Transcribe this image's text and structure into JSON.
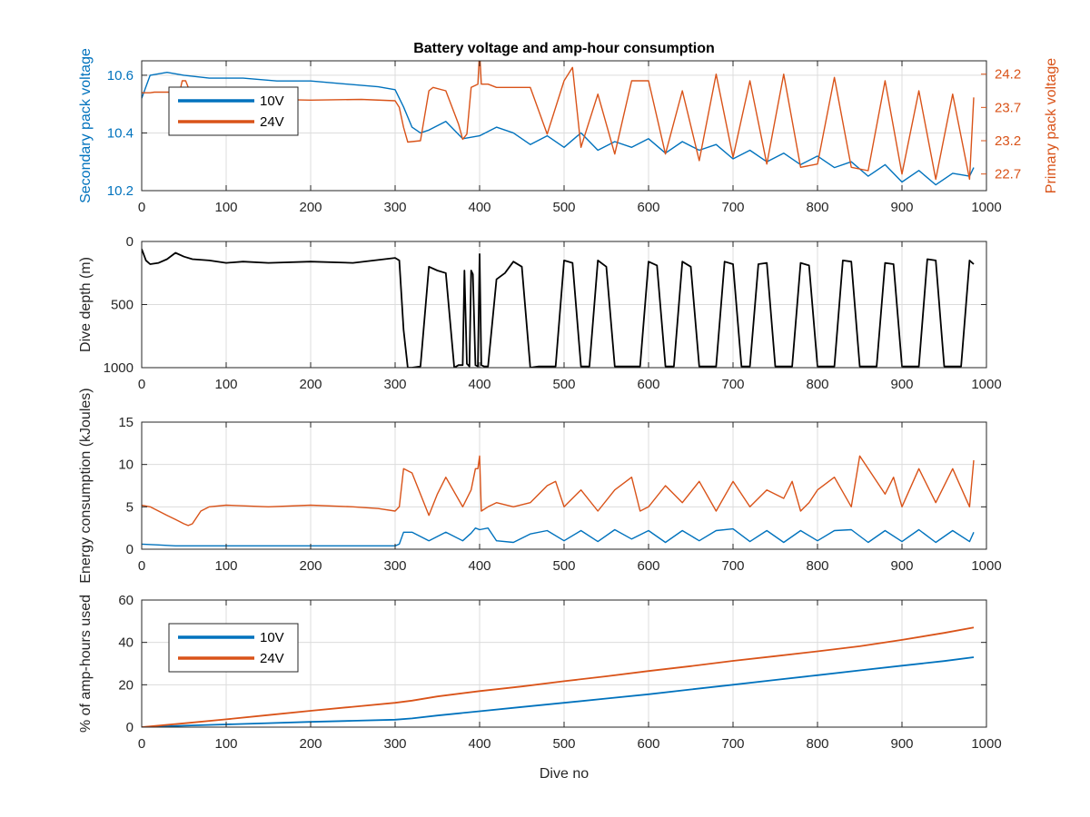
{
  "figure": {
    "title": "Battery voltage and amp-hour consumption",
    "xlabel": "Dive no",
    "colors": {
      "c10V": "#0072BD",
      "c24V": "#D95319",
      "depth": "#000000",
      "grid": "#DCDCDC",
      "axis": "#262626"
    }
  },
  "chart_data": [
    {
      "type": "line",
      "panel": "voltage",
      "title": "Battery voltage and amp-hour consumption",
      "xlim": [
        0,
        1000
      ],
      "xticks": [
        "0",
        "100",
        "200",
        "300",
        "400",
        "500",
        "600",
        "700",
        "800",
        "900",
        "1000"
      ],
      "ylabel_left": "Secondary pack voltage",
      "ylim_left": [
        10.2,
        10.65
      ],
      "yticks_left": [
        "10.2",
        "10.4",
        "10.6"
      ],
      "ylabel_right": "Primary pack voltage",
      "ylim_right": [
        22.45,
        24.4
      ],
      "yticks_right": [
        "22.7",
        "23.2",
        "23.7",
        "24.2"
      ],
      "legend": [
        "10V",
        "24V"
      ],
      "legend_location": "top-left",
      "grid": true,
      "series": [
        {
          "name": "10V",
          "axis": "left",
          "x": [
            0,
            10,
            30,
            50,
            80,
            120,
            160,
            200,
            240,
            280,
            300,
            310,
            320,
            330,
            340,
            360,
            380,
            400,
            420,
            440,
            460,
            480,
            500,
            520,
            540,
            560,
            580,
            600,
            620,
            640,
            660,
            680,
            700,
            720,
            740,
            760,
            780,
            800,
            820,
            840,
            860,
            880,
            900,
            920,
            940,
            960,
            980,
            985
          ],
          "y": [
            10.52,
            10.6,
            10.61,
            10.6,
            10.59,
            10.59,
            10.58,
            10.58,
            10.57,
            10.56,
            10.55,
            10.49,
            10.42,
            10.4,
            10.41,
            10.44,
            10.38,
            10.39,
            10.42,
            10.4,
            10.36,
            10.39,
            10.35,
            10.4,
            10.34,
            10.37,
            10.35,
            10.38,
            10.33,
            10.37,
            10.34,
            10.36,
            10.31,
            10.34,
            10.3,
            10.33,
            10.29,
            10.32,
            10.28,
            10.3,
            10.25,
            10.29,
            10.23,
            10.27,
            10.22,
            10.26,
            10.25,
            10.28
          ]
        },
        {
          "name": "24V",
          "axis": "right",
          "x": [
            0,
            10,
            15,
            30,
            45,
            48,
            52,
            57,
            60,
            80,
            120,
            200,
            260,
            300,
            305,
            310,
            315,
            330,
            340,
            345,
            360,
            375,
            380,
            385,
            390,
            398,
            400,
            402,
            410,
            420,
            440,
            460,
            480,
            500,
            510,
            520,
            540,
            560,
            580,
            600,
            620,
            640,
            660,
            680,
            700,
            720,
            740,
            760,
            780,
            800,
            820,
            840,
            860,
            880,
            900,
            920,
            940,
            960,
            980,
            985
          ],
          "y": [
            23.92,
            23.92,
            23.93,
            23.93,
            23.93,
            24.1,
            24.1,
            23.94,
            23.93,
            23.85,
            23.83,
            23.81,
            23.82,
            23.8,
            23.7,
            23.4,
            23.18,
            23.2,
            23.95,
            24.0,
            23.95,
            23.45,
            23.22,
            23.3,
            24.0,
            24.05,
            24.55,
            24.05,
            24.05,
            24.0,
            24.0,
            24.0,
            23.3,
            24.1,
            24.3,
            23.1,
            23.9,
            23.0,
            24.1,
            24.1,
            23.0,
            23.95,
            22.9,
            24.2,
            22.95,
            24.1,
            22.85,
            24.2,
            22.8,
            22.85,
            24.15,
            22.8,
            22.75,
            24.1,
            22.7,
            23.95,
            22.62,
            23.9,
            22.62,
            23.85
          ]
        }
      ]
    },
    {
      "type": "line",
      "panel": "depth",
      "xlim": [
        0,
        1000
      ],
      "xticks": [
        "0",
        "100",
        "200",
        "300",
        "400",
        "500",
        "600",
        "700",
        "800",
        "900",
        "1000"
      ],
      "ylabel": "Dive depth (m)",
      "ylim": [
        0,
        1000
      ],
      "y_reversed": true,
      "yticks": [
        "0",
        "500",
        "1000"
      ],
      "grid": true,
      "series": [
        {
          "name": "depth",
          "x": [
            0,
            5,
            10,
            20,
            30,
            40,
            50,
            60,
            80,
            100,
            120,
            150,
            200,
            250,
            300,
            305,
            310,
            315,
            320,
            330,
            340,
            350,
            360,
            370,
            375,
            380,
            382,
            385,
            388,
            390,
            392,
            395,
            398,
            400,
            402,
            405,
            410,
            420,
            430,
            440,
            450,
            460,
            470,
            480,
            490,
            500,
            510,
            520,
            530,
            540,
            550,
            560,
            570,
            580,
            590,
            600,
            610,
            620,
            630,
            640,
            650,
            660,
            670,
            680,
            690,
            700,
            710,
            720,
            730,
            740,
            750,
            760,
            770,
            780,
            790,
            800,
            810,
            820,
            830,
            840,
            850,
            860,
            870,
            880,
            890,
            900,
            910,
            920,
            930,
            940,
            950,
            960,
            970,
            980,
            985
          ],
          "y": [
            60,
            150,
            180,
            170,
            140,
            90,
            120,
            140,
            150,
            170,
            160,
            170,
            160,
            170,
            130,
            150,
            700,
            1000,
            1000,
            990,
            200,
            230,
            250,
            1000,
            980,
            980,
            230,
            970,
            990,
            230,
            260,
            980,
            990,
            100,
            980,
            990,
            990,
            300,
            250,
            160,
            200,
            1000,
            990,
            990,
            990,
            150,
            170,
            990,
            990,
            150,
            200,
            990,
            990,
            990,
            990,
            160,
            190,
            990,
            990,
            160,
            200,
            990,
            990,
            990,
            160,
            180,
            990,
            990,
            180,
            170,
            990,
            990,
            990,
            170,
            190,
            990,
            990,
            990,
            150,
            160,
            990,
            990,
            990,
            170,
            180,
            990,
            990,
            990,
            140,
            150,
            990,
            990,
            990,
            150,
            180
          ]
        }
      ]
    },
    {
      "type": "line",
      "panel": "energy",
      "xlim": [
        0,
        1000
      ],
      "xticks": [
        "0",
        "100",
        "200",
        "300",
        "400",
        "500",
        "600",
        "700",
        "800",
        "900",
        "1000"
      ],
      "ylabel": "Energy consumption (kJoules)",
      "ylim": [
        0,
        15
      ],
      "yticks": [
        "0",
        "5",
        "10",
        "15"
      ],
      "grid": true,
      "series": [
        {
          "name": "10V",
          "x": [
            0,
            20,
            40,
            80,
            120,
            160,
            200,
            240,
            280,
            300,
            305,
            310,
            320,
            340,
            350,
            360,
            380,
            390,
            395,
            400,
            410,
            420,
            440,
            460,
            480,
            500,
            520,
            540,
            560,
            580,
            600,
            620,
            640,
            660,
            680,
            700,
            720,
            740,
            760,
            780,
            800,
            820,
            840,
            860,
            880,
            900,
            920,
            940,
            960,
            980,
            985
          ],
          "y": [
            0.6,
            0.5,
            0.4,
            0.4,
            0.4,
            0.4,
            0.4,
            0.4,
            0.4,
            0.4,
            0.6,
            2.0,
            2.0,
            1.0,
            1.5,
            2.0,
            1.0,
            1.9,
            2.5,
            2.3,
            2.5,
            1.0,
            0.8,
            1.8,
            2.2,
            1.0,
            2.2,
            0.9,
            2.3,
            1.2,
            2.2,
            0.8,
            2.2,
            1.0,
            2.2,
            2.4,
            0.9,
            2.2,
            0.8,
            2.2,
            1.0,
            2.2,
            2.3,
            0.8,
            2.2,
            0.9,
            2.3,
            0.8,
            2.2,
            0.9,
            2.0
          ]
        },
        {
          "name": "24V",
          "x": [
            0,
            10,
            20,
            30,
            40,
            50,
            55,
            60,
            70,
            80,
            100,
            150,
            200,
            250,
            280,
            300,
            305,
            310,
            320,
            340,
            350,
            360,
            380,
            390,
            395,
            398,
            400,
            402,
            410,
            420,
            440,
            460,
            480,
            490,
            500,
            520,
            540,
            560,
            580,
            590,
            600,
            620,
            640,
            660,
            680,
            700,
            720,
            740,
            760,
            770,
            780,
            790,
            800,
            820,
            840,
            850,
            860,
            880,
            890,
            900,
            920,
            940,
            960,
            980,
            985
          ],
          "y": [
            5.2,
            5.0,
            4.5,
            4.0,
            3.5,
            3.0,
            2.8,
            3.0,
            4.5,
            5.0,
            5.2,
            5.0,
            5.2,
            5.0,
            4.8,
            4.5,
            5.0,
            9.5,
            9.0,
            4.0,
            6.5,
            8.5,
            5.0,
            7.0,
            9.5,
            9.5,
            11.0,
            4.5,
            5.0,
            5.5,
            5.0,
            5.5,
            7.5,
            8.0,
            5.0,
            7.0,
            4.5,
            7.0,
            8.5,
            4.5,
            5.0,
            7.5,
            5.5,
            8.0,
            4.5,
            8.0,
            5.0,
            7.0,
            6.0,
            8.0,
            4.5,
            5.5,
            7.0,
            8.5,
            5.0,
            11.0,
            9.5,
            6.5,
            8.5,
            5.0,
            9.5,
            5.5,
            9.5,
            5.0,
            10.5
          ]
        }
      ]
    },
    {
      "type": "line",
      "panel": "amphours",
      "xlim": [
        0,
        1000
      ],
      "xticks": [
        "0",
        "100",
        "200",
        "300",
        "400",
        "500",
        "600",
        "700",
        "800",
        "900",
        "1000"
      ],
      "xlabel": "Dive no",
      "ylabel": "% of amp-hours used",
      "ylim": [
        0,
        60
      ],
      "yticks": [
        "0",
        "20",
        "40",
        "60"
      ],
      "legend": [
        "10V",
        "24V"
      ],
      "legend_location": "top-left",
      "grid": true,
      "series": [
        {
          "name": "10V",
          "x": [
            0,
            50,
            100,
            150,
            200,
            250,
            300,
            320,
            350,
            400,
            450,
            500,
            550,
            600,
            650,
            700,
            750,
            800,
            850,
            900,
            950,
            985
          ],
          "y": [
            0,
            0.7,
            1.3,
            1.9,
            2.5,
            3.0,
            3.5,
            4.1,
            5.5,
            7.5,
            9.5,
            11.5,
            13.5,
            15.5,
            17.8,
            20.0,
            22.3,
            24.5,
            26.8,
            29.0,
            31.2,
            33.0
          ]
        },
        {
          "name": "24V",
          "x": [
            0,
            50,
            100,
            150,
            200,
            250,
            300,
            320,
            350,
            400,
            450,
            500,
            550,
            600,
            650,
            700,
            750,
            800,
            850,
            900,
            950,
            985
          ],
          "y": [
            0,
            1.8,
            3.7,
            5.7,
            7.7,
            9.6,
            11.5,
            12.5,
            14.5,
            17.0,
            19.2,
            21.7,
            24.0,
            26.5,
            28.8,
            31.3,
            33.5,
            35.8,
            38.2,
            41.2,
            44.5,
            47.0
          ]
        }
      ]
    }
  ]
}
